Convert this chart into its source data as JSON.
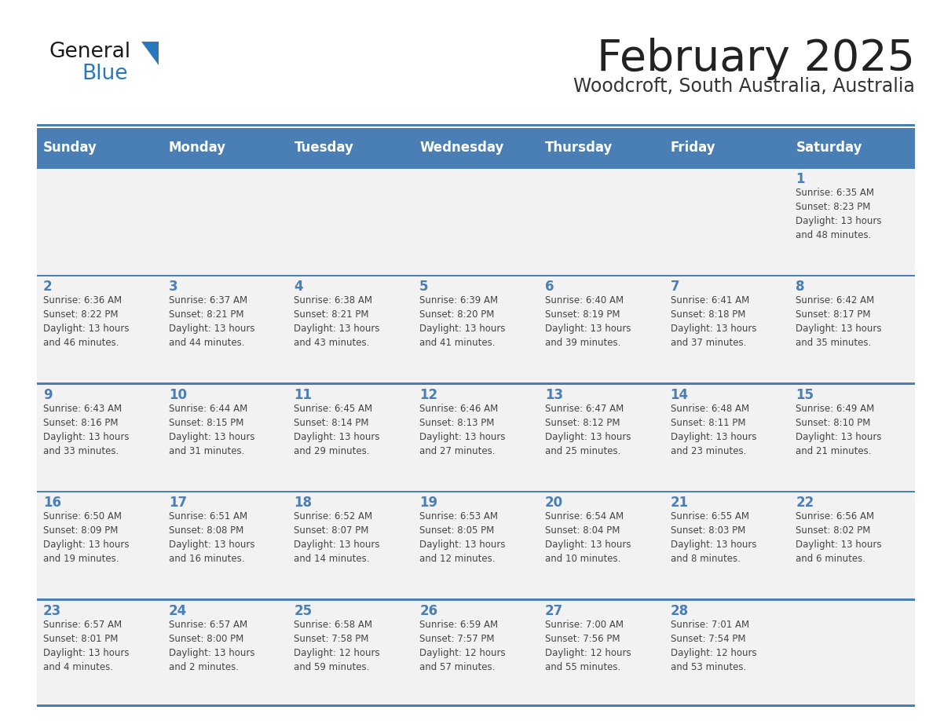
{
  "title": "February 2025",
  "subtitle": "Woodcroft, South Australia, Australia",
  "header_color": "#4a7fb5",
  "header_text_color": "#ffffff",
  "cell_bg_light": "#f2f2f2",
  "day_number_color": "#4a7fb5",
  "body_text_color": "#444444",
  "line_color": "#4a7fb5",
  "days_of_week": [
    "Sunday",
    "Monday",
    "Tuesday",
    "Wednesday",
    "Thursday",
    "Friday",
    "Saturday"
  ],
  "weeks": [
    [
      {
        "day": null,
        "info": null
      },
      {
        "day": null,
        "info": null
      },
      {
        "day": null,
        "info": null
      },
      {
        "day": null,
        "info": null
      },
      {
        "day": null,
        "info": null
      },
      {
        "day": null,
        "info": null
      },
      {
        "day": "1",
        "info": "Sunrise: 6:35 AM\nSunset: 8:23 PM\nDaylight: 13 hours\nand 48 minutes."
      }
    ],
    [
      {
        "day": "2",
        "info": "Sunrise: 6:36 AM\nSunset: 8:22 PM\nDaylight: 13 hours\nand 46 minutes."
      },
      {
        "day": "3",
        "info": "Sunrise: 6:37 AM\nSunset: 8:21 PM\nDaylight: 13 hours\nand 44 minutes."
      },
      {
        "day": "4",
        "info": "Sunrise: 6:38 AM\nSunset: 8:21 PM\nDaylight: 13 hours\nand 43 minutes."
      },
      {
        "day": "5",
        "info": "Sunrise: 6:39 AM\nSunset: 8:20 PM\nDaylight: 13 hours\nand 41 minutes."
      },
      {
        "day": "6",
        "info": "Sunrise: 6:40 AM\nSunset: 8:19 PM\nDaylight: 13 hours\nand 39 minutes."
      },
      {
        "day": "7",
        "info": "Sunrise: 6:41 AM\nSunset: 8:18 PM\nDaylight: 13 hours\nand 37 minutes."
      },
      {
        "day": "8",
        "info": "Sunrise: 6:42 AM\nSunset: 8:17 PM\nDaylight: 13 hours\nand 35 minutes."
      }
    ],
    [
      {
        "day": "9",
        "info": "Sunrise: 6:43 AM\nSunset: 8:16 PM\nDaylight: 13 hours\nand 33 minutes."
      },
      {
        "day": "10",
        "info": "Sunrise: 6:44 AM\nSunset: 8:15 PM\nDaylight: 13 hours\nand 31 minutes."
      },
      {
        "day": "11",
        "info": "Sunrise: 6:45 AM\nSunset: 8:14 PM\nDaylight: 13 hours\nand 29 minutes."
      },
      {
        "day": "12",
        "info": "Sunrise: 6:46 AM\nSunset: 8:13 PM\nDaylight: 13 hours\nand 27 minutes."
      },
      {
        "day": "13",
        "info": "Sunrise: 6:47 AM\nSunset: 8:12 PM\nDaylight: 13 hours\nand 25 minutes."
      },
      {
        "day": "14",
        "info": "Sunrise: 6:48 AM\nSunset: 8:11 PM\nDaylight: 13 hours\nand 23 minutes."
      },
      {
        "day": "15",
        "info": "Sunrise: 6:49 AM\nSunset: 8:10 PM\nDaylight: 13 hours\nand 21 minutes."
      }
    ],
    [
      {
        "day": "16",
        "info": "Sunrise: 6:50 AM\nSunset: 8:09 PM\nDaylight: 13 hours\nand 19 minutes."
      },
      {
        "day": "17",
        "info": "Sunrise: 6:51 AM\nSunset: 8:08 PM\nDaylight: 13 hours\nand 16 minutes."
      },
      {
        "day": "18",
        "info": "Sunrise: 6:52 AM\nSunset: 8:07 PM\nDaylight: 13 hours\nand 14 minutes."
      },
      {
        "day": "19",
        "info": "Sunrise: 6:53 AM\nSunset: 8:05 PM\nDaylight: 13 hours\nand 12 minutes."
      },
      {
        "day": "20",
        "info": "Sunrise: 6:54 AM\nSunset: 8:04 PM\nDaylight: 13 hours\nand 10 minutes."
      },
      {
        "day": "21",
        "info": "Sunrise: 6:55 AM\nSunset: 8:03 PM\nDaylight: 13 hours\nand 8 minutes."
      },
      {
        "day": "22",
        "info": "Sunrise: 6:56 AM\nSunset: 8:02 PM\nDaylight: 13 hours\nand 6 minutes."
      }
    ],
    [
      {
        "day": "23",
        "info": "Sunrise: 6:57 AM\nSunset: 8:01 PM\nDaylight: 13 hours\nand 4 minutes."
      },
      {
        "day": "24",
        "info": "Sunrise: 6:57 AM\nSunset: 8:00 PM\nDaylight: 13 hours\nand 2 minutes."
      },
      {
        "day": "25",
        "info": "Sunrise: 6:58 AM\nSunset: 7:58 PM\nDaylight: 12 hours\nand 59 minutes."
      },
      {
        "day": "26",
        "info": "Sunrise: 6:59 AM\nSunset: 7:57 PM\nDaylight: 12 hours\nand 57 minutes."
      },
      {
        "day": "27",
        "info": "Sunrise: 7:00 AM\nSunset: 7:56 PM\nDaylight: 12 hours\nand 55 minutes."
      },
      {
        "day": "28",
        "info": "Sunrise: 7:01 AM\nSunset: 7:54 PM\nDaylight: 12 hours\nand 53 minutes."
      },
      {
        "day": null,
        "info": null
      }
    ]
  ],
  "logo_text1": "General",
  "logo_text2": "Blue",
  "logo_text1_color": "#1a1a1a",
  "logo_text2_color": "#2878be",
  "logo_triangle_color": "#2878be",
  "title_color": "#222222",
  "subtitle_color": "#333333"
}
